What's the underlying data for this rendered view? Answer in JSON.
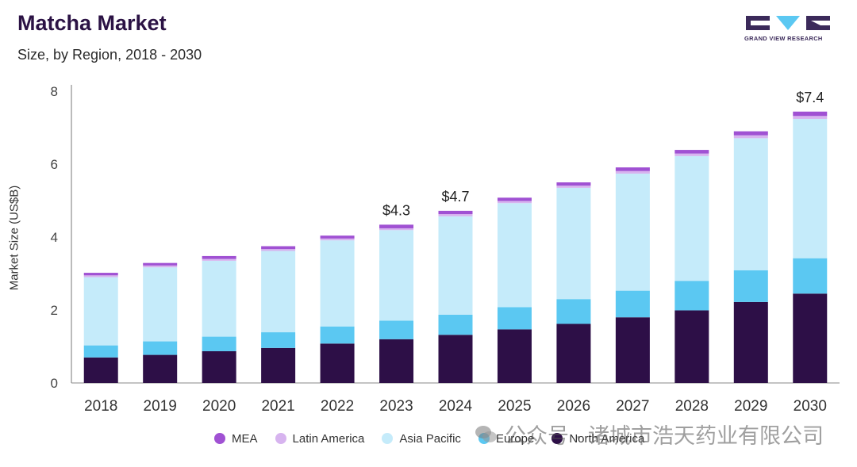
{
  "header": {
    "title": "Matcha Market",
    "subtitle": "Size, by Region, 2018 - 2030",
    "logo_text": "GRAND VIEW RESEARCH"
  },
  "colors": {
    "north_america": "#2d0f47",
    "europe": "#5bc8f2",
    "asia_pacific": "#c5ebfa",
    "latin_america": "#d7b4ef",
    "mea": "#a051d3",
    "title": "#2b1244"
  },
  "watermark": {
    "text": "公众号 · 诸城市浩天药业有限公司",
    "icon": "wechat-icon"
  },
  "chart_data": {
    "type": "bar",
    "stacked": true,
    "title": "Matcha Market",
    "subtitle": "Size, by Region, 2018 - 2030",
    "xlabel": "",
    "ylabel": "Market Size (US$B)",
    "ylim": [
      0,
      8
    ],
    "yticks": [
      0,
      2,
      4,
      6,
      8
    ],
    "grid": false,
    "legend_position": "bottom",
    "categories": [
      "2018",
      "2019",
      "2020",
      "2021",
      "2022",
      "2023",
      "2024",
      "2025",
      "2026",
      "2027",
      "2028",
      "2029",
      "2030"
    ],
    "series": [
      {
        "name": "North America",
        "values": [
          0.7,
          0.77,
          0.87,
          0.96,
          1.08,
          1.2,
          1.32,
          1.47,
          1.62,
          1.8,
          1.99,
          2.22,
          2.45
        ]
      },
      {
        "name": "Europe",
        "values": [
          0.33,
          0.37,
          0.4,
          0.43,
          0.47,
          0.51,
          0.55,
          0.61,
          0.68,
          0.73,
          0.81,
          0.87,
          0.97
        ]
      },
      {
        "name": "Asia Pacific",
        "values": [
          1.87,
          2.03,
          2.08,
          2.23,
          2.36,
          2.48,
          2.7,
          2.85,
          3.05,
          3.21,
          3.42,
          3.62,
          3.82
        ]
      },
      {
        "name": "Latin America",
        "values": [
          0.05,
          0.05,
          0.05,
          0.05,
          0.05,
          0.05,
          0.06,
          0.06,
          0.06,
          0.07,
          0.07,
          0.08,
          0.08
        ]
      },
      {
        "name": "MEA",
        "values": [
          0.07,
          0.07,
          0.08,
          0.08,
          0.08,
          0.1,
          0.09,
          0.09,
          0.09,
          0.1,
          0.1,
          0.11,
          0.12
        ]
      }
    ],
    "annotations": [
      {
        "category": "2023",
        "text": "$4.3"
      },
      {
        "category": "2024",
        "text": "$4.7"
      },
      {
        "category": "2030",
        "text": "$7.4"
      }
    ]
  }
}
